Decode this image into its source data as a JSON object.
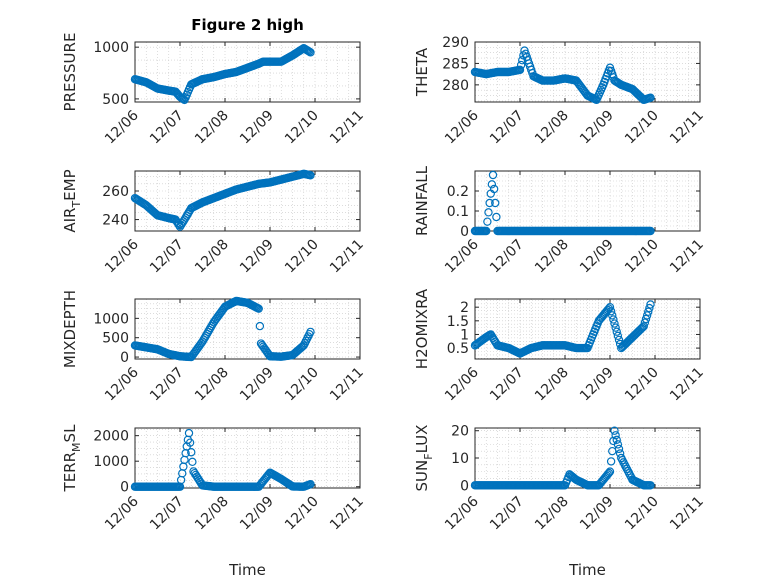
{
  "chart_data": [
    {
      "type": "scatter",
      "title": "Figure 2 high",
      "ylabel": "PRESSURE",
      "ylim": [
        470,
        1050
      ],
      "yticks": [
        500,
        1000
      ],
      "xlim": [
        0,
        5
      ],
      "xticks": [
        0,
        1,
        2,
        3,
        4,
        5
      ],
      "xticklabels": [
        "12/06",
        "12/07",
        "12/08",
        "12/09",
        "12/10",
        "12/11"
      ],
      "grid": true,
      "x": [
        0,
        0.25,
        0.5,
        0.75,
        0.9,
        1.0,
        1.1,
        1.25,
        1.5,
        1.75,
        2.0,
        2.25,
        2.5,
        2.75,
        2.85,
        3.0,
        3.25,
        3.5,
        3.75,
        3.9
      ],
      "y": [
        690,
        660,
        600,
        580,
        570,
        520,
        490,
        640,
        690,
        710,
        740,
        760,
        800,
        840,
        860,
        860,
        860,
        920,
        990,
        950
      ]
    },
    {
      "type": "scatter",
      "ylabel": "THETA",
      "ylim": [
        276,
        290
      ],
      "yticks": [
        280,
        285,
        290
      ],
      "xlim": [
        0,
        5
      ],
      "grid": true,
      "x": [
        0,
        0.25,
        0.5,
        0.75,
        1.0,
        1.1,
        1.2,
        1.3,
        1.5,
        1.75,
        2.0,
        2.25,
        2.5,
        2.7,
        2.85,
        3.0,
        3.1,
        3.25,
        3.5,
        3.75,
        3.9
      ],
      "y": [
        283,
        282.5,
        283,
        283,
        283.5,
        288,
        285,
        282,
        281,
        281,
        281.5,
        281,
        277.5,
        276.5,
        280,
        284,
        281,
        280,
        279,
        276.5,
        277
      ]
    },
    {
      "type": "scatter",
      "ylabel": "AIR_TEMP",
      "ylim": [
        232,
        274
      ],
      "yticks": [
        240,
        260
      ],
      "xlim": [
        0,
        5
      ],
      "grid": true,
      "x": [
        0,
        0.25,
        0.5,
        0.75,
        0.9,
        1.0,
        1.1,
        1.25,
        1.5,
        1.75,
        2.0,
        2.25,
        2.5,
        2.75,
        3.0,
        3.25,
        3.5,
        3.75,
        3.9
      ],
      "y": [
        255,
        250,
        243,
        241,
        240,
        235,
        240,
        248,
        252,
        255,
        258,
        261,
        263,
        265,
        266,
        268,
        270,
        272,
        271
      ]
    },
    {
      "type": "scatter",
      "ylabel": "RAINFALL",
      "ylim": [
        0,
        0.3
      ],
      "yticks": [
        0,
        0.1,
        0.2
      ],
      "xlim": [
        0,
        5
      ],
      "grid": true,
      "x": [
        0,
        0.25,
        0.4,
        0.5,
        0.75,
        1.0,
        1.5,
        2.0,
        2.5,
        3.0,
        3.5,
        3.9
      ],
      "y": [
        0,
        0,
        0.28,
        0,
        0,
        0,
        0,
        0,
        0,
        0,
        0,
        0
      ]
    },
    {
      "type": "scatter",
      "ylabel": "MIXDEPTH",
      "ylim": [
        -50,
        1500
      ],
      "yticks": [
        0,
        500,
        1000
      ],
      "xlim": [
        0,
        5
      ],
      "grid": true,
      "x": [
        0,
        0.25,
        0.5,
        0.75,
        1.0,
        1.25,
        1.5,
        1.75,
        2.0,
        2.25,
        2.5,
        2.75,
        2.8,
        3.0,
        3.25,
        3.5,
        3.75,
        3.9
      ],
      "y": [
        300,
        250,
        200,
        80,
        20,
        0,
        400,
        900,
        1300,
        1450,
        1400,
        1250,
        350,
        20,
        10,
        50,
        300,
        650
      ]
    },
    {
      "type": "scatter",
      "ylabel": "H2OMIXRA",
      "ylim": [
        0.1,
        2.3
      ],
      "yticks": [
        0.5,
        1,
        1.5,
        2
      ],
      "xlim": [
        0,
        5
      ],
      "grid": true,
      "x": [
        0,
        0.25,
        0.35,
        0.5,
        0.75,
        1.0,
        1.25,
        1.5,
        1.75,
        2.0,
        2.25,
        2.5,
        2.75,
        3.0,
        3.25,
        3.5,
        3.75,
        3.9
      ],
      "y": [
        0.6,
        0.9,
        1.0,
        0.6,
        0.5,
        0.3,
        0.5,
        0.6,
        0.6,
        0.6,
        0.5,
        0.5,
        1.5,
        2.0,
        0.5,
        0.9,
        1.3,
        2.1
      ]
    },
    {
      "type": "scatter",
      "ylabel": "TERR_MSL",
      "ylim": [
        -50,
        2300
      ],
      "yticks": [
        0,
        1000,
        2000
      ],
      "xlim": [
        0,
        5
      ],
      "grid": true,
      "x": [
        0,
        0.25,
        0.5,
        0.75,
        1.0,
        1.2,
        1.3,
        1.5,
        1.75,
        2.0,
        2.25,
        2.5,
        2.75,
        3.0,
        3.25,
        3.5,
        3.75,
        3.9
      ],
      "y": [
        0,
        0,
        0,
        0,
        0,
        2100,
        600,
        50,
        0,
        0,
        0,
        0,
        0,
        550,
        300,
        10,
        0,
        100
      ]
    },
    {
      "type": "scatter",
      "ylabel": "SUN_FLUX",
      "ylim": [
        -1,
        21
      ],
      "yticks": [
        0,
        10,
        20
      ],
      "xlim": [
        0,
        5
      ],
      "grid": true,
      "x": [
        0,
        0.25,
        0.5,
        0.75,
        1.0,
        1.25,
        1.5,
        1.75,
        2.0,
        2.1,
        2.25,
        2.5,
        2.75,
        3.0,
        3.1,
        3.25,
        3.5,
        3.75,
        3.9
      ],
      "y": [
        0,
        0,
        0,
        0,
        0,
        0,
        0,
        0,
        0,
        4,
        2,
        0,
        0,
        5,
        20,
        10,
        2,
        0,
        0
      ]
    }
  ],
  "axes_labels": {
    "time_left": "Time",
    "time_right": "Time"
  }
}
